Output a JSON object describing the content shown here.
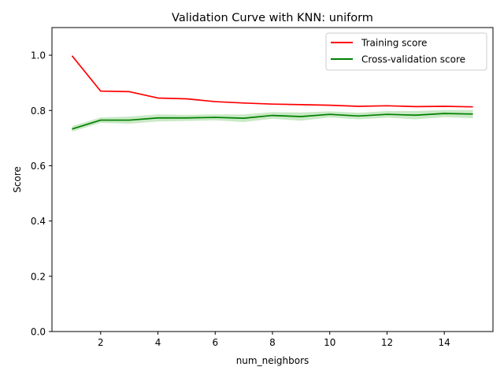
{
  "chart_data": {
    "type": "line",
    "title": "Validation Curve with KNN: uniform",
    "xlabel": "num_neighbors",
    "ylabel": "Score",
    "xlim": [
      0.3,
      15.7
    ],
    "ylim": [
      0.0,
      1.1
    ],
    "x_ticks": [
      2,
      4,
      6,
      8,
      10,
      12,
      14
    ],
    "y_ticks": [
      0.0,
      0.2,
      0.4,
      0.6,
      0.8,
      1.0
    ],
    "x": [
      1,
      2,
      3,
      4,
      5,
      6,
      7,
      8,
      9,
      10,
      11,
      12,
      13,
      14,
      15
    ],
    "grid": false,
    "legend_position": "top-right",
    "series": [
      {
        "name": "Training score",
        "color": "#ff0000",
        "values": [
          0.998,
          0.87,
          0.868,
          0.845,
          0.842,
          0.832,
          0.827,
          0.823,
          0.821,
          0.819,
          0.815,
          0.817,
          0.814,
          0.815,
          0.813
        ]
      },
      {
        "name": "Cross-validation score",
        "color": "#008000",
        "band_color": "#a6dba0",
        "values": [
          0.733,
          0.765,
          0.765,
          0.773,
          0.773,
          0.775,
          0.772,
          0.782,
          0.778,
          0.786,
          0.78,
          0.786,
          0.783,
          0.789,
          0.787
        ],
        "band_low": [
          0.723,
          0.755,
          0.752,
          0.76,
          0.762,
          0.764,
          0.758,
          0.77,
          0.763,
          0.775,
          0.768,
          0.774,
          0.768,
          0.776,
          0.772
        ],
        "band_high": [
          0.743,
          0.775,
          0.778,
          0.786,
          0.784,
          0.786,
          0.786,
          0.794,
          0.793,
          0.797,
          0.792,
          0.798,
          0.798,
          0.802,
          0.802
        ]
      }
    ]
  }
}
